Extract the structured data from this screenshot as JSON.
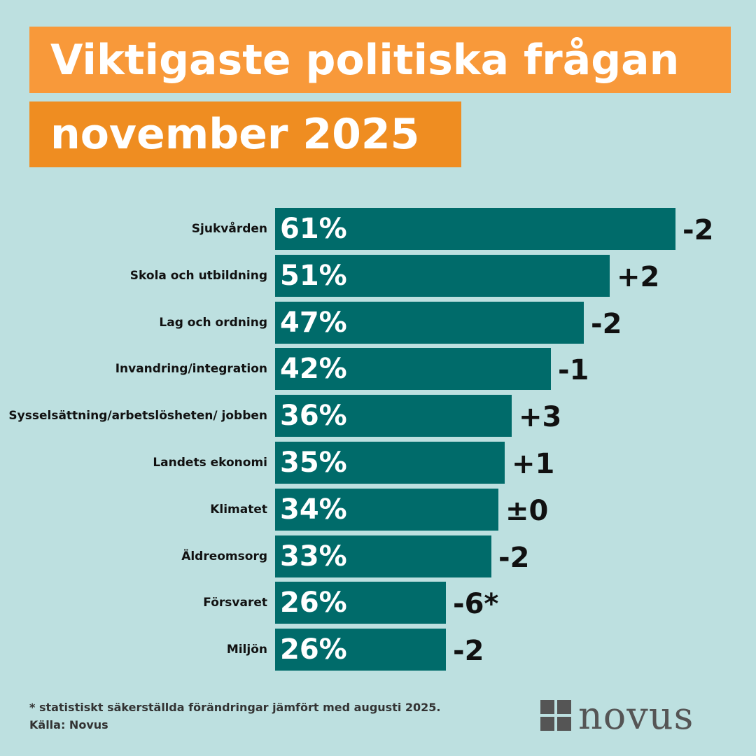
{
  "header": {
    "title_line1": "Viktigaste politiska frågan",
    "title_line2": "november 2025"
  },
  "colors": {
    "background": "#bde0e0",
    "bar": "#006b6a",
    "title_box_1": "#f8993a",
    "title_box_2": "#ef8d21",
    "logo": "#555555"
  },
  "chart_data": {
    "type": "bar",
    "orientation": "horizontal",
    "categories": [
      "Sjukvården",
      "Skola och utbildning",
      "Lag och ordning",
      "Invandring/integration",
      "Sysselsättning/arbetslösheten/ jobben",
      "Landets ekonomi",
      "Klimatet",
      "Äldreomsorg",
      "Försvaret",
      "Miljön"
    ],
    "values": [
      61,
      51,
      47,
      42,
      36,
      35,
      34,
      33,
      26,
      26
    ],
    "value_labels": [
      "61%",
      "51%",
      "47%",
      "42%",
      "36%",
      "35%",
      "34%",
      "33%",
      "26%",
      "26%"
    ],
    "changes": [
      "-2",
      "+2",
      "-2",
      "-1",
      "+3",
      "+1",
      "±0",
      "-2",
      "-6*",
      "-2"
    ],
    "xlim": [
      0,
      61
    ],
    "grid": false,
    "legend": "none"
  },
  "footer": {
    "footnote": "* statistiskt säkerställda förändringar jämfört med augusti 2025.",
    "source": "Källa: Novus",
    "logo_text": "novus"
  }
}
